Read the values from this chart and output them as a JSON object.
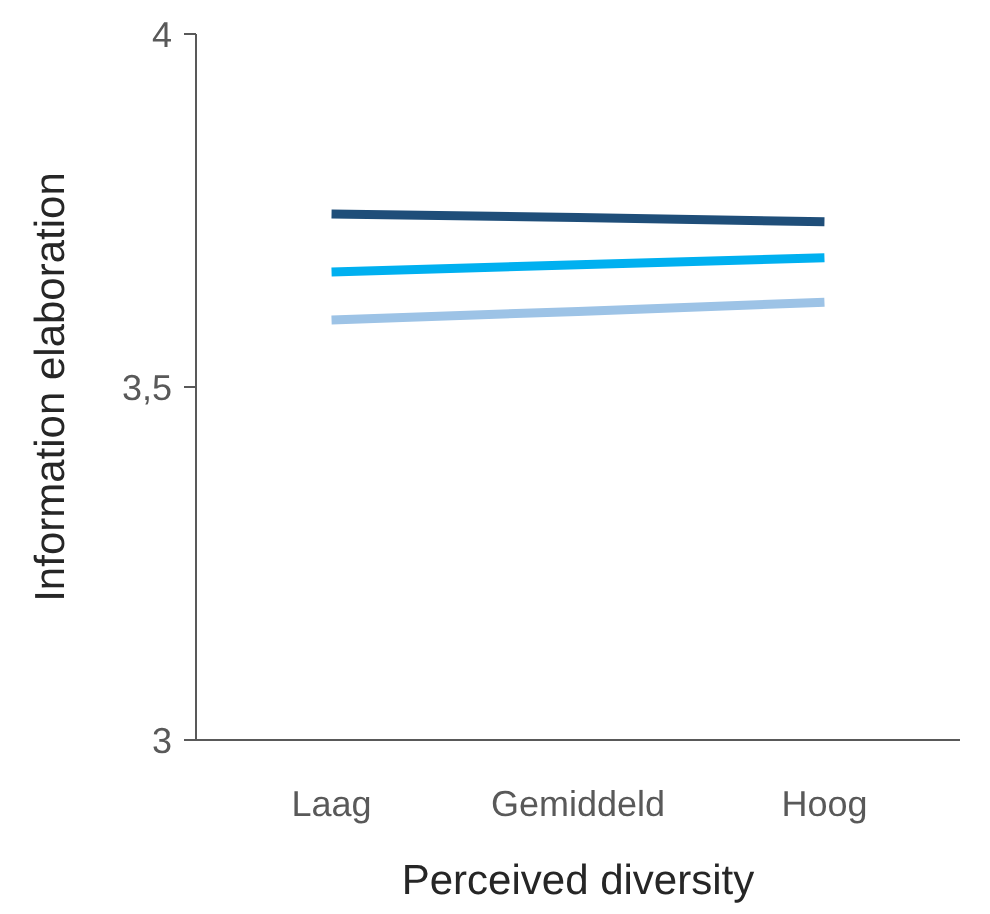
{
  "chart_data": {
    "type": "line",
    "xlabel": "Perceived diversity",
    "ylabel": "Information elaboration",
    "categories": [
      "Laag",
      "Gemiddeld",
      "Hoog"
    ],
    "series": [
      {
        "color": "#1f4e79",
        "values": [
          3.745,
          3.74,
          3.734
        ]
      },
      {
        "color": "#00b0f0",
        "values": [
          3.663,
          3.673,
          3.683
        ]
      },
      {
        "color": "#9dc3e6",
        "values": [
          3.595,
          3.607,
          3.62
        ]
      }
    ],
    "ylim": [
      3,
      4
    ],
    "yticks": [
      3,
      {
        "value": 3.5,
        "label": "3,5"
      },
      4
    ],
    "grid": false,
    "marker": "none",
    "line_style": "solid"
  }
}
